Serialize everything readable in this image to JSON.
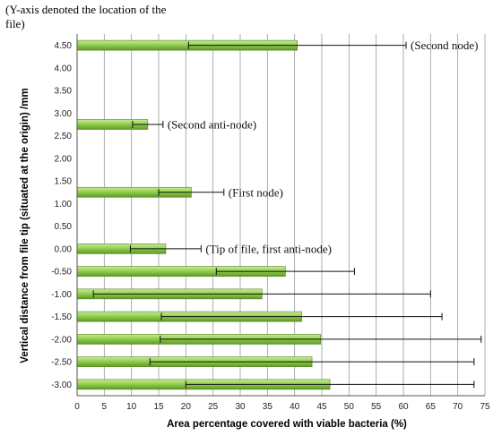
{
  "chart_data": {
    "type": "bar",
    "orientation": "horizontal",
    "title": "",
    "note": "(Y-axis denoted the location of the file)",
    "xlabel": "Area percentage covered with viable bacteria (%)",
    "ylabel": "Vertical distance from file tip (situated at the origin) /mm",
    "xlim": [
      0,
      75
    ],
    "x_ticks": [
      "0",
      "5",
      "10",
      "15",
      "20",
      "25",
      "30",
      "35",
      "40",
      "45",
      "50",
      "55",
      "60",
      "65",
      "70",
      "75"
    ],
    "y_ticks": [
      "-3.00",
      "-2.50",
      "-2.00",
      "-1.50",
      "-1.00",
      "-0.50",
      "0.00",
      "0.50",
      "1.00",
      "1.50",
      "2.00",
      "2.50",
      "3.00",
      "3.50",
      "4.00",
      "4.50"
    ],
    "grid": "vertical",
    "bar_color": "#92d050",
    "bars": [
      {
        "y": "4.50",
        "value": 40.5,
        "error": 20.0,
        "annotation": "(Second node)"
      },
      {
        "y": "2.75",
        "value": 13.0,
        "error": 2.8,
        "annotation": "(Second anti-node)"
      },
      {
        "y": "1.25",
        "value": 21.0,
        "error": 6.0,
        "annotation": "(First node)"
      },
      {
        "y": "0.00",
        "value": 16.3,
        "error": 6.5,
        "annotation": "(Tip of file, first anti-node)"
      },
      {
        "y": "-0.50",
        "value": 38.3,
        "error": 12.7,
        "annotation": ""
      },
      {
        "y": "-1.00",
        "value": 34.0,
        "error": 31.0,
        "annotation": ""
      },
      {
        "y": "-1.50",
        "value": 41.3,
        "error": 25.8,
        "annotation": ""
      },
      {
        "y": "-2.00",
        "value": 44.8,
        "error": 29.5,
        "annotation": ""
      },
      {
        "y": "-2.50",
        "value": 43.2,
        "error": 29.8,
        "annotation": ""
      },
      {
        "y": "-3.00",
        "value": 46.5,
        "error": 26.5,
        "annotation": ""
      }
    ]
  }
}
